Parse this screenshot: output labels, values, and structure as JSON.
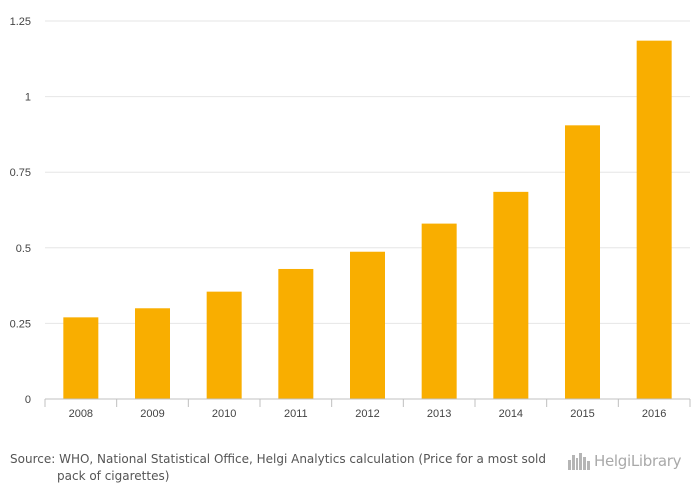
{
  "chart_data": {
    "type": "bar",
    "categories": [
      "2008",
      "2009",
      "2010",
      "2011",
      "2012",
      "2013",
      "2014",
      "2015",
      "2016"
    ],
    "values": [
      0.27,
      0.3,
      0.355,
      0.43,
      0.487,
      0.58,
      0.685,
      0.905,
      1.185
    ],
    "yticks": [
      "0",
      "0.25",
      "0.5",
      "0.75",
      "1",
      "1.25"
    ],
    "ylim": [
      0,
      1.25
    ],
    "grid": true,
    "legend": "none",
    "bar_color": "#f9ae00"
  },
  "footer": {
    "source": "Source: WHO, National Statistical Office, Helgi Analytics calculation (Price for a most sold pack of cigarettes)",
    "logo_text": "HelgiLibrary"
  }
}
